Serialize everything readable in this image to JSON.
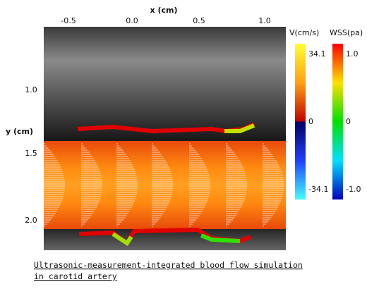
{
  "figure": {
    "x_axis": {
      "label": "x (cm)",
      "ticks": [
        "-0.5",
        "0.0",
        "0.5",
        "1.0"
      ]
    },
    "y_axis": {
      "label": "y (cm)",
      "ticks": [
        "1.0",
        "1.5",
        "2.0"
      ]
    },
    "velocity_bar": {
      "label": "V(cm/s)",
      "ticks": [
        "34.1",
        "0",
        "-34.1"
      ]
    },
    "wss_bar": {
      "label": "WSS(pa)",
      "ticks": [
        "1.0",
        "0",
        "-1.0"
      ]
    },
    "caption": [
      "Ultrasonic-measurement-integrated blood flow simulation",
      "in carotid artery"
    ]
  }
}
